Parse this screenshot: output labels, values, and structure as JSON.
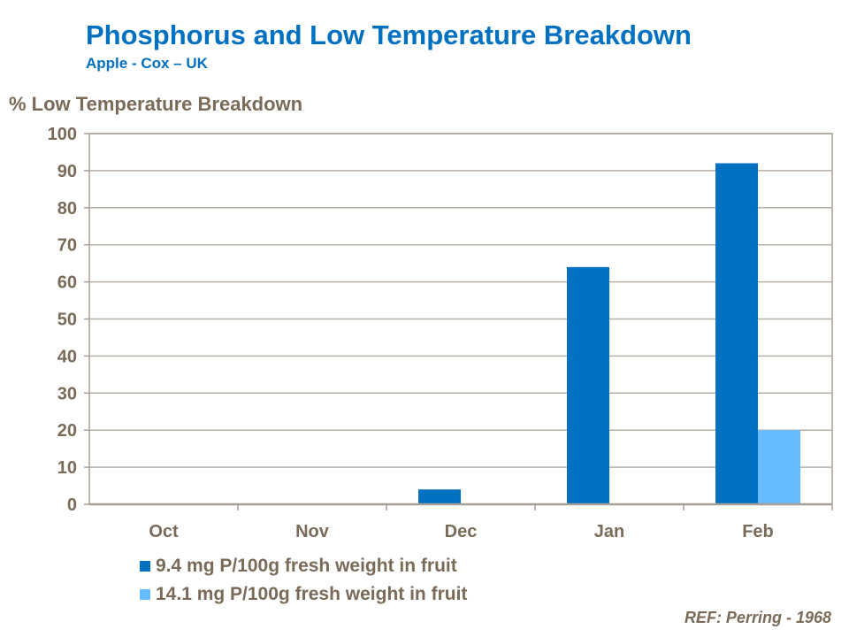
{
  "chart_data": {
    "type": "bar",
    "title": "Phosphorus and Low Temperature Breakdown",
    "subtitle": "Apple - Cox – UK",
    "ylabel": "% Low Temperature Breakdown",
    "xlabel": "",
    "categories": [
      "Oct",
      "Nov",
      "Dec",
      "Jan",
      "Feb"
    ],
    "ylim": [
      0,
      100
    ],
    "yticks": [
      0,
      10,
      20,
      30,
      40,
      50,
      60,
      70,
      80,
      90,
      100
    ],
    "grid": true,
    "legend_placement": "bottom",
    "series": [
      {
        "name": "9.4 mg P/100g fresh weight in fruit",
        "values": [
          0,
          0,
          4,
          64,
          92
        ],
        "color": "#0070C0"
      },
      {
        "name": "14.1 mg P/100g fresh weight in fruit",
        "values": [
          0,
          0,
          0,
          0,
          20
        ],
        "color": "#66BCFF"
      }
    ],
    "annotation": "REF: Perring - 1968"
  }
}
